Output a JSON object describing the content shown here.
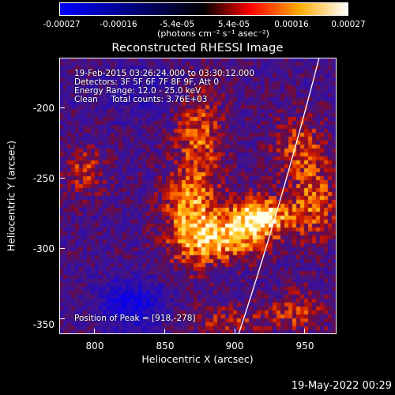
{
  "colorbar": {
    "tick_labels": [
      "-0.00027",
      "-0.00016",
      "-5.4e-05",
      "5.4e-05",
      "0.00016",
      "0.00027"
    ],
    "units": "(photons cm⁻² s⁻¹ asec⁻²)",
    "colors": [
      "#0000ff",
      "#000000",
      "#ff0000",
      "#ffaa00",
      "#ffffff"
    ]
  },
  "plot": {
    "title": "Reconstructed RHESSI Image",
    "info_lines": [
      "19-Feb-2015 03:26:24.000 to 03:30:12.000",
      "Detectors: 3F 5F 6F 7F 8F 9F, Att 0",
      "Energy Range: 12.0 - 25.0 keV",
      "Clean     Total counts: 3.76E+03"
    ],
    "peak_label": "Position of Peak = [918,-278]",
    "xlabel": "Heliocentric X (arcsec)",
    "ylabel": "Heliocentric Y (arcsec)",
    "xticks": [
      "800",
      "850",
      "900",
      "950"
    ],
    "yticks": [
      "-200",
      "-250",
      "-300",
      "-350"
    ],
    "xlim": [
      776,
      970
    ],
    "ylim": [
      -362,
      -165
    ]
  },
  "footer": {
    "date": "19-May-2022 00:29"
  }
}
